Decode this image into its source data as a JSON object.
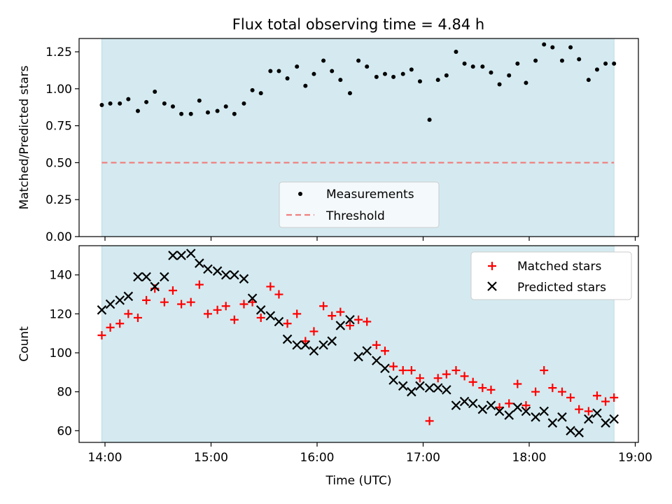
{
  "figure_title": "Flux total observing time = 4.84 h",
  "chart_data": [
    {
      "type": "scatter",
      "title": "Flux total observing time = 4.84 h",
      "xlabel": "",
      "ylabel": "Matched/Predicted stars",
      "xlim": [
        13.97,
        19.02
      ],
      "ylim": [
        0.0,
        1.34
      ],
      "xticks": [
        14,
        15,
        16,
        17,
        18,
        19
      ],
      "yticks": [
        0.0,
        0.25,
        0.5,
        0.75,
        1.0,
        1.25
      ],
      "yticklabels": [
        "0.00",
        "0.25",
        "0.50",
        "0.75",
        "1.00",
        "1.25"
      ],
      "shaded_span": [
        13.97,
        18.8
      ],
      "shade_color": "#d4eaf0",
      "threshold": {
        "name": "Threshold",
        "value": 0.5,
        "x_range": [
          13.97,
          18.8
        ],
        "color": "#f08080"
      },
      "series": [
        {
          "name": "Measurements",
          "marker": "dot",
          "color": "#000000",
          "x": [
            13.97,
            14.05,
            14.14,
            14.22,
            14.31,
            14.39,
            14.47,
            14.56,
            14.64,
            14.72,
            14.81,
            14.89,
            14.97,
            15.06,
            15.14,
            15.22,
            15.31,
            15.39,
            15.47,
            15.56,
            15.64,
            15.72,
            15.81,
            15.89,
            15.97,
            16.06,
            16.14,
            16.22,
            16.31,
            16.39,
            16.47,
            16.56,
            16.64,
            16.72,
            16.81,
            16.89,
            16.97,
            17.06,
            17.14,
            17.22,
            17.31,
            17.39,
            17.47,
            17.56,
            17.64,
            17.72,
            17.81,
            17.89,
            17.97,
            18.06,
            18.14,
            18.22,
            18.31,
            18.39,
            18.47,
            18.56,
            18.64,
            18.72,
            18.8
          ],
          "y": [
            0.89,
            0.9,
            0.9,
            0.93,
            0.85,
            0.91,
            0.98,
            0.9,
            0.88,
            0.83,
            0.83,
            0.92,
            0.84,
            0.85,
            0.88,
            0.83,
            0.9,
            0.99,
            0.97,
            1.12,
            1.12,
            1.07,
            1.15,
            1.02,
            1.1,
            1.19,
            1.12,
            1.06,
            0.97,
            1.19,
            1.15,
            1.08,
            1.1,
            1.08,
            1.1,
            1.13,
            1.05,
            0.79,
            1.06,
            1.09,
            1.25,
            1.17,
            1.15,
            1.15,
            1.11,
            1.03,
            1.09,
            1.17,
            1.04,
            1.19,
            1.3,
            1.28,
            1.19,
            1.28,
            1.2,
            1.06,
            1.13,
            1.17,
            1.17
          ]
        }
      ],
      "legend": {
        "position": "lower-center",
        "entries": [
          "Measurements",
          "Threshold"
        ]
      }
    },
    {
      "type": "scatter",
      "title": "",
      "xlabel": "Time (UTC)",
      "ylabel": "Count",
      "xlim": [
        13.72,
        19.02
      ],
      "ylim": [
        54,
        155
      ],
      "xticks": [
        14,
        15,
        16,
        17,
        18,
        19
      ],
      "xticklabels": [
        "14:00",
        "15:00",
        "16:00",
        "17:00",
        "18:00",
        "19:00"
      ],
      "yticks": [
        60,
        80,
        100,
        120,
        140
      ],
      "yticklabels": [
        "60",
        "80",
        "100",
        "120",
        "140"
      ],
      "shaded_span": [
        13.97,
        18.8
      ],
      "shade_color": "#d4eaf0",
      "series": [
        {
          "name": "Matched stars",
          "marker": "plus",
          "color": "#ff0000",
          "x": [
            13.97,
            14.05,
            14.14,
            14.22,
            14.31,
            14.39,
            14.47,
            14.56,
            14.64,
            14.72,
            14.81,
            14.89,
            14.97,
            15.06,
            15.14,
            15.22,
            15.31,
            15.39,
            15.47,
            15.56,
            15.64,
            15.72,
            15.81,
            15.89,
            15.97,
            16.06,
            16.14,
            16.22,
            16.31,
            16.39,
            16.47,
            16.56,
            16.64,
            16.72,
            16.81,
            16.89,
            16.97,
            17.06,
            17.14,
            17.22,
            17.31,
            17.39,
            17.47,
            17.56,
            17.64,
            17.72,
            17.81,
            17.89,
            17.97,
            18.06,
            18.14,
            18.22,
            18.31,
            18.39,
            18.47,
            18.56,
            18.64,
            18.72,
            18.8
          ],
          "y": [
            109,
            113,
            115,
            120,
            118,
            127,
            133,
            126,
            132,
            125,
            126,
            135,
            120,
            122,
            124,
            117,
            125,
            126,
            118,
            134,
            130,
            115,
            120,
            106,
            111,
            124,
            119,
            121,
            114,
            117,
            116,
            104,
            101,
            93,
            91,
            91,
            87,
            65,
            87,
            89,
            91,
            88,
            85,
            82,
            81,
            72,
            74,
            84,
            73,
            80,
            91,
            82,
            80,
            77,
            71,
            70,
            78,
            75,
            77
          ]
        },
        {
          "name": "Predicted stars",
          "marker": "x",
          "color": "#000000",
          "x": [
            13.97,
            14.05,
            14.14,
            14.22,
            14.31,
            14.39,
            14.47,
            14.56,
            14.64,
            14.72,
            14.81,
            14.89,
            14.97,
            15.06,
            15.14,
            15.22,
            15.31,
            15.39,
            15.47,
            15.56,
            15.64,
            15.72,
            15.81,
            15.89,
            15.97,
            16.06,
            16.14,
            16.22,
            16.31,
            16.39,
            16.47,
            16.56,
            16.64,
            16.72,
            16.81,
            16.89,
            16.97,
            17.06,
            17.14,
            17.22,
            17.31,
            17.39,
            17.47,
            17.56,
            17.64,
            17.72,
            17.81,
            17.89,
            17.97,
            18.06,
            18.14,
            18.22,
            18.31,
            18.39,
            18.47,
            18.56,
            18.64,
            18.72,
            18.8
          ],
          "y": [
            122,
            125,
            127,
            129,
            139,
            139,
            134,
            139,
            150,
            150,
            151,
            146,
            143,
            142,
            140,
            140,
            138,
            128,
            122,
            119,
            116,
            107,
            104,
            104,
            101,
            104,
            106,
            114,
            117,
            98,
            101,
            96,
            92,
            86,
            83,
            80,
            83,
            82,
            82,
            81,
            73,
            75,
            74,
            71,
            73,
            70,
            68,
            72,
            70,
            67,
            70,
            64,
            67,
            60,
            59,
            66,
            69,
            64,
            66
          ]
        }
      ],
      "legend": {
        "position": "upper-right",
        "entries": [
          "Matched stars",
          "Predicted stars"
        ]
      }
    }
  ]
}
